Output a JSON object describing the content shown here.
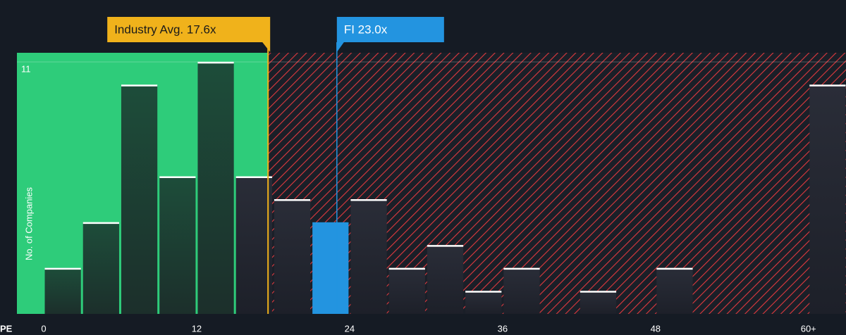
{
  "chart_data": {
    "type": "histogram",
    "xlabel": "PE",
    "ylabel": "No. of Companies",
    "bins": [
      0,
      3,
      6,
      9,
      12,
      15,
      18,
      21,
      24,
      27,
      30,
      33,
      36,
      39,
      42,
      45,
      48,
      51,
      54,
      57,
      60,
      63
    ],
    "values": [
      2,
      4,
      10,
      6,
      11,
      6,
      5,
      4,
      5,
      2,
      3,
      1,
      2,
      0,
      1,
      0,
      2,
      0,
      0,
      0,
      10
    ],
    "highlight_index": 7,
    "colors": {
      "below": "#2ecc7a",
      "above": "#e0393e",
      "highlight": "#2394e0",
      "industry": "#f0b21b"
    },
    "xlim": [
      0,
      63
    ],
    "ylim": [
      0,
      11.4
    ],
    "xticks": [
      0,
      12,
      24,
      36,
      48,
      {
        "value": 60,
        "label": "60+"
      }
    ],
    "yticks": [
      11
    ],
    "annotations": [
      {
        "label": "Industry Avg. 17.6x",
        "value": 17.6
      },
      {
        "label": "FI 23.0x",
        "value": 23.0
      }
    ]
  }
}
